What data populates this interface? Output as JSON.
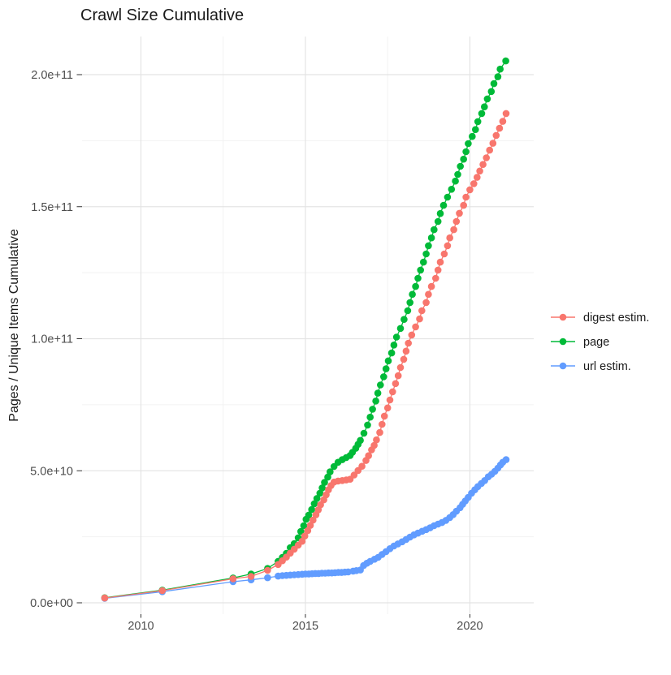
{
  "page": {
    "background": "#ffffff"
  },
  "chart_data": {
    "type": "line",
    "marker": "circle",
    "title": "Crawl Size Cumulative",
    "xlabel": "",
    "ylabel": "Pages / Unique Items Cumulative",
    "grid": true,
    "legend_position": "right",
    "value_unit": "points are [year, pages x 1e9]",
    "xlim": [
      2008.21,
      2021.94
    ],
    "ylim_e9": [
      -4.3,
      214.44
    ],
    "x_ticks": [
      {
        "value": 2010,
        "label": "2010"
      },
      {
        "value": 2015,
        "label": "2015"
      },
      {
        "value": 2020,
        "label": "2020"
      }
    ],
    "x_minor": [
      2012.5,
      2017.5
    ],
    "y_ticks": [
      {
        "value_e9": 0,
        "label": "0.0e+00"
      },
      {
        "value_e9": 50,
        "label": "5.0e+10"
      },
      {
        "value_e9": 100,
        "label": "1.0e+11"
      },
      {
        "value_e9": 150,
        "label": "1.5e+11"
      },
      {
        "value_e9": 200,
        "label": "2.0e+11"
      }
    ],
    "y_minor_e9": [
      25,
      75,
      125,
      175
    ],
    "colors": {
      "digest": "#F8766D",
      "page": "#00BA38",
      "url": "#619CFF",
      "grid_major": "#e4e4e4",
      "grid_minor": "#f2f2f2",
      "tick": "#333333",
      "tick_text": "#4d4d4d"
    },
    "series": [
      {
        "name": "digest estim.",
        "key": "digest",
        "color": "#F8766D",
        "points": [
          [
            2008.9,
            1.8
          ],
          [
            2010.65,
            4.6
          ],
          [
            2012.8,
            9.1
          ],
          [
            2013.35,
            10.0
          ],
          [
            2013.85,
            12.3
          ],
          [
            2014.17,
            14.5
          ],
          [
            2014.3,
            15.9
          ],
          [
            2014.42,
            17.3
          ],
          [
            2014.54,
            18.8
          ],
          [
            2014.66,
            20.3
          ],
          [
            2014.78,
            21.8
          ],
          [
            2014.9,
            23.3
          ],
          [
            2014.98,
            25.3
          ],
          [
            2015.07,
            27.3
          ],
          [
            2015.15,
            29.3
          ],
          [
            2015.23,
            31.3
          ],
          [
            2015.32,
            33.3
          ],
          [
            2015.39,
            35.2
          ],
          [
            2015.46,
            37.1
          ],
          [
            2015.56,
            39.0
          ],
          [
            2015.63,
            40.9
          ],
          [
            2015.7,
            42.8
          ],
          [
            2015.78,
            44.4
          ],
          [
            2015.87,
            45.7
          ],
          [
            2015.99,
            46.1
          ],
          [
            2016.12,
            46.3
          ],
          [
            2016.24,
            46.5
          ],
          [
            2016.36,
            46.8
          ],
          [
            2016.48,
            48.4
          ],
          [
            2016.6,
            50.1
          ],
          [
            2016.72,
            51.7
          ],
          [
            2016.84,
            53.9
          ],
          [
            2016.92,
            55.7
          ],
          [
            2017.01,
            57.9
          ],
          [
            2017.09,
            59.6
          ],
          [
            2017.16,
            61.7
          ],
          [
            2017.26,
            64.5
          ],
          [
            2017.33,
            67.6
          ],
          [
            2017.4,
            70.7
          ],
          [
            2017.5,
            73.8
          ],
          [
            2017.57,
            76.8
          ],
          [
            2017.65,
            79.9
          ],
          [
            2017.74,
            83.0
          ],
          [
            2017.82,
            86.0
          ],
          [
            2017.89,
            89.1
          ],
          [
            2017.99,
            92.2
          ],
          [
            2018.06,
            95.3
          ],
          [
            2018.13,
            98.3
          ],
          [
            2018.23,
            101.4
          ],
          [
            2018.35,
            104.5
          ],
          [
            2018.47,
            107.5
          ],
          [
            2018.54,
            110.6
          ],
          [
            2018.67,
            113.7
          ],
          [
            2018.74,
            116.8
          ],
          [
            2018.83,
            119.8
          ],
          [
            2018.96,
            122.9
          ],
          [
            2019.03,
            126.0
          ],
          [
            2019.1,
            129.0
          ],
          [
            2019.22,
            132.1
          ],
          [
            2019.32,
            135.2
          ],
          [
            2019.39,
            138.2
          ],
          [
            2019.51,
            141.3
          ],
          [
            2019.59,
            144.4
          ],
          [
            2019.68,
            147.5
          ],
          [
            2019.81,
            150.5
          ],
          [
            2019.88,
            153.6
          ],
          [
            2020.0,
            156.4
          ],
          [
            2020.12,
            158.7
          ],
          [
            2020.22,
            161.1
          ],
          [
            2020.3,
            163.5
          ],
          [
            2020.4,
            166.0
          ],
          [
            2020.5,
            168.5
          ],
          [
            2020.6,
            171.4
          ],
          [
            2020.7,
            174.0
          ],
          [
            2020.8,
            177.0
          ],
          [
            2020.9,
            179.7
          ],
          [
            2021.0,
            182.3
          ],
          [
            2021.1,
            185.3
          ]
        ]
      },
      {
        "name": "page",
        "key": "page",
        "color": "#00BA38",
        "points": [
          [
            2008.9,
            1.9
          ],
          [
            2010.65,
            4.8
          ],
          [
            2012.8,
            9.4
          ],
          [
            2013.35,
            10.9
          ],
          [
            2013.85,
            13.0
          ],
          [
            2014.17,
            15.7
          ],
          [
            2014.3,
            17.2
          ],
          [
            2014.42,
            18.7
          ],
          [
            2014.54,
            20.9
          ],
          [
            2014.66,
            22.4
          ],
          [
            2014.78,
            24.6
          ],
          [
            2014.86,
            27.0
          ],
          [
            2014.95,
            29.2
          ],
          [
            2015.02,
            31.6
          ],
          [
            2015.1,
            33.2
          ],
          [
            2015.19,
            35.3
          ],
          [
            2015.27,
            37.5
          ],
          [
            2015.35,
            39.5
          ],
          [
            2015.44,
            41.5
          ],
          [
            2015.51,
            43.5
          ],
          [
            2015.58,
            45.6
          ],
          [
            2015.68,
            47.6
          ],
          [
            2015.75,
            49.6
          ],
          [
            2015.87,
            51.6
          ],
          [
            2015.99,
            53.2
          ],
          [
            2016.12,
            54.2
          ],
          [
            2016.24,
            55.0
          ],
          [
            2016.36,
            55.8
          ],
          [
            2016.43,
            57.0
          ],
          [
            2016.53,
            58.5
          ],
          [
            2016.6,
            60.0
          ],
          [
            2016.67,
            61.5
          ],
          [
            2016.78,
            64.2
          ],
          [
            2016.89,
            67.3
          ],
          [
            2016.97,
            70.3
          ],
          [
            2017.04,
            73.3
          ],
          [
            2017.14,
            76.4
          ],
          [
            2017.2,
            79.4
          ],
          [
            2017.28,
            82.5
          ],
          [
            2017.38,
            85.6
          ],
          [
            2017.45,
            88.6
          ],
          [
            2017.52,
            91.6
          ],
          [
            2017.62,
            94.6
          ],
          [
            2017.69,
            97.6
          ],
          [
            2017.77,
            100.6
          ],
          [
            2017.89,
            103.9
          ],
          [
            2018.0,
            107.3
          ],
          [
            2018.11,
            110.6
          ],
          [
            2018.18,
            113.7
          ],
          [
            2018.25,
            116.8
          ],
          [
            2018.35,
            119.8
          ],
          [
            2018.42,
            122.9
          ],
          [
            2018.5,
            126.0
          ],
          [
            2018.59,
            129.0
          ],
          [
            2018.67,
            132.1
          ],
          [
            2018.74,
            135.2
          ],
          [
            2018.83,
            138.2
          ],
          [
            2018.91,
            141.3
          ],
          [
            2019.03,
            144.4
          ],
          [
            2019.1,
            147.4
          ],
          [
            2019.2,
            150.5
          ],
          [
            2019.32,
            153.6
          ],
          [
            2019.44,
            156.6
          ],
          [
            2019.56,
            159.7
          ],
          [
            2019.63,
            162.2
          ],
          [
            2019.71,
            165.3
          ],
          [
            2019.81,
            168.0
          ],
          [
            2019.88,
            170.8
          ],
          [
            2019.95,
            173.9
          ],
          [
            2020.07,
            176.6
          ],
          [
            2020.17,
            179.2
          ],
          [
            2020.24,
            182.2
          ],
          [
            2020.36,
            185.3
          ],
          [
            2020.44,
            187.8
          ],
          [
            2020.53,
            190.8
          ],
          [
            2020.65,
            193.6
          ],
          [
            2020.73,
            196.6
          ],
          [
            2020.85,
            199.2
          ],
          [
            2020.92,
            202.1
          ],
          [
            2021.09,
            205.2
          ]
        ]
      },
      {
        "name": "url estim.",
        "key": "url",
        "color": "#619CFF",
        "points": [
          [
            2008.9,
            1.7
          ],
          [
            2010.65,
            4.2
          ],
          [
            2012.8,
            8.0
          ],
          [
            2013.35,
            8.7
          ],
          [
            2013.85,
            9.5
          ],
          [
            2014.17,
            10.1
          ],
          [
            2014.3,
            10.3
          ],
          [
            2014.42,
            10.4
          ],
          [
            2014.54,
            10.5
          ],
          [
            2014.66,
            10.6
          ],
          [
            2014.78,
            10.7
          ],
          [
            2014.9,
            10.8
          ],
          [
            2015.0,
            10.9
          ],
          [
            2015.1,
            10.9
          ],
          [
            2015.2,
            11.0
          ],
          [
            2015.3,
            11.1
          ],
          [
            2015.4,
            11.1
          ],
          [
            2015.5,
            11.2
          ],
          [
            2015.6,
            11.2
          ],
          [
            2015.7,
            11.3
          ],
          [
            2015.8,
            11.3
          ],
          [
            2015.9,
            11.4
          ],
          [
            2016.0,
            11.5
          ],
          [
            2016.1,
            11.5
          ],
          [
            2016.2,
            11.6
          ],
          [
            2016.3,
            11.7
          ],
          [
            2016.45,
            12.0
          ],
          [
            2016.55,
            12.2
          ],
          [
            2016.67,
            12.4
          ],
          [
            2016.77,
            14.1
          ],
          [
            2016.87,
            15.0
          ],
          [
            2016.97,
            15.7
          ],
          [
            2017.1,
            16.5
          ],
          [
            2017.21,
            17.2
          ],
          [
            2017.33,
            18.3
          ],
          [
            2017.45,
            19.4
          ],
          [
            2017.57,
            20.5
          ],
          [
            2017.69,
            21.5
          ],
          [
            2017.81,
            22.3
          ],
          [
            2017.94,
            23.1
          ],
          [
            2018.06,
            24.0
          ],
          [
            2018.18,
            24.9
          ],
          [
            2018.3,
            25.7
          ],
          [
            2018.42,
            26.4
          ],
          [
            2018.55,
            27.1
          ],
          [
            2018.67,
            27.7
          ],
          [
            2018.79,
            28.4
          ],
          [
            2018.91,
            29.2
          ],
          [
            2019.03,
            29.8
          ],
          [
            2019.15,
            30.4
          ],
          [
            2019.27,
            31.2
          ],
          [
            2019.39,
            32.3
          ],
          [
            2019.49,
            33.4
          ],
          [
            2019.59,
            34.7
          ],
          [
            2019.7,
            36.0
          ],
          [
            2019.78,
            37.3
          ],
          [
            2019.86,
            38.6
          ],
          [
            2019.95,
            39.9
          ],
          [
            2020.05,
            41.5
          ],
          [
            2020.15,
            42.8
          ],
          [
            2020.24,
            44.0
          ],
          [
            2020.35,
            45.2
          ],
          [
            2020.45,
            46.3
          ],
          [
            2020.56,
            47.7
          ],
          [
            2020.66,
            48.7
          ],
          [
            2020.76,
            49.8
          ],
          [
            2020.85,
            51.0
          ],
          [
            2020.93,
            52.2
          ],
          [
            2021.0,
            53.2
          ],
          [
            2021.1,
            54.2
          ]
        ]
      }
    ]
  }
}
